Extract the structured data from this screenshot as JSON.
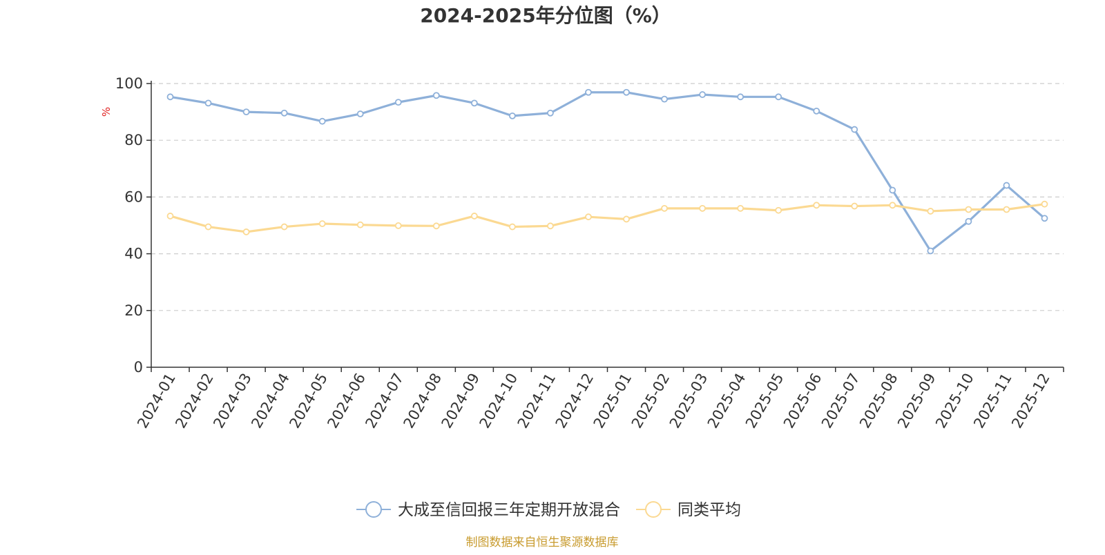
{
  "chart_data": {
    "type": "line",
    "title": "2024-2025年分位图（%）",
    "ylabel": "%",
    "xlabel": "",
    "ylim": [
      0,
      100
    ],
    "yticks": [
      0,
      20,
      40,
      60,
      80,
      100
    ],
    "grid": true,
    "legend_position": "bottom",
    "categories": [
      "2024-01",
      "2024-02",
      "2024-03",
      "2024-04",
      "2024-05",
      "2024-06",
      "2024-07",
      "2024-08",
      "2024-09",
      "2024-10",
      "2024-11",
      "2024-12",
      "2025-01",
      "2025-02",
      "2025-03",
      "2025-04",
      "2025-05",
      "2025-06",
      "2025-07",
      "2025-08",
      "2025-09",
      "2025-10",
      "2025-11",
      "2025-12"
    ],
    "series": [
      {
        "name": "大成至信回报三年定期开放混合",
        "color": "#8eb0d9",
        "values": [
          95.3,
          93.1,
          90.0,
          89.6,
          86.7,
          89.3,
          93.4,
          95.8,
          93.1,
          88.6,
          89.6,
          96.9,
          96.9,
          94.5,
          96.1,
          95.3,
          95.3,
          90.3,
          83.8,
          62.4,
          41.0,
          51.4,
          64.1,
          52.5
        ]
      },
      {
        "name": "同类平均",
        "color": "#fbd992",
        "values": [
          53.3,
          49.5,
          47.7,
          49.5,
          50.6,
          50.2,
          49.9,
          49.8,
          53.3,
          49.5,
          49.8,
          53.0,
          52.2,
          56.0,
          56.0,
          56.0,
          55.3,
          57.1,
          56.8,
          57.1,
          55.0,
          55.6,
          55.6,
          57.5
        ]
      }
    ]
  },
  "footer": {
    "source_text": "制图数据来自恒生聚源数据库",
    "source_color": "#c89b2e"
  }
}
